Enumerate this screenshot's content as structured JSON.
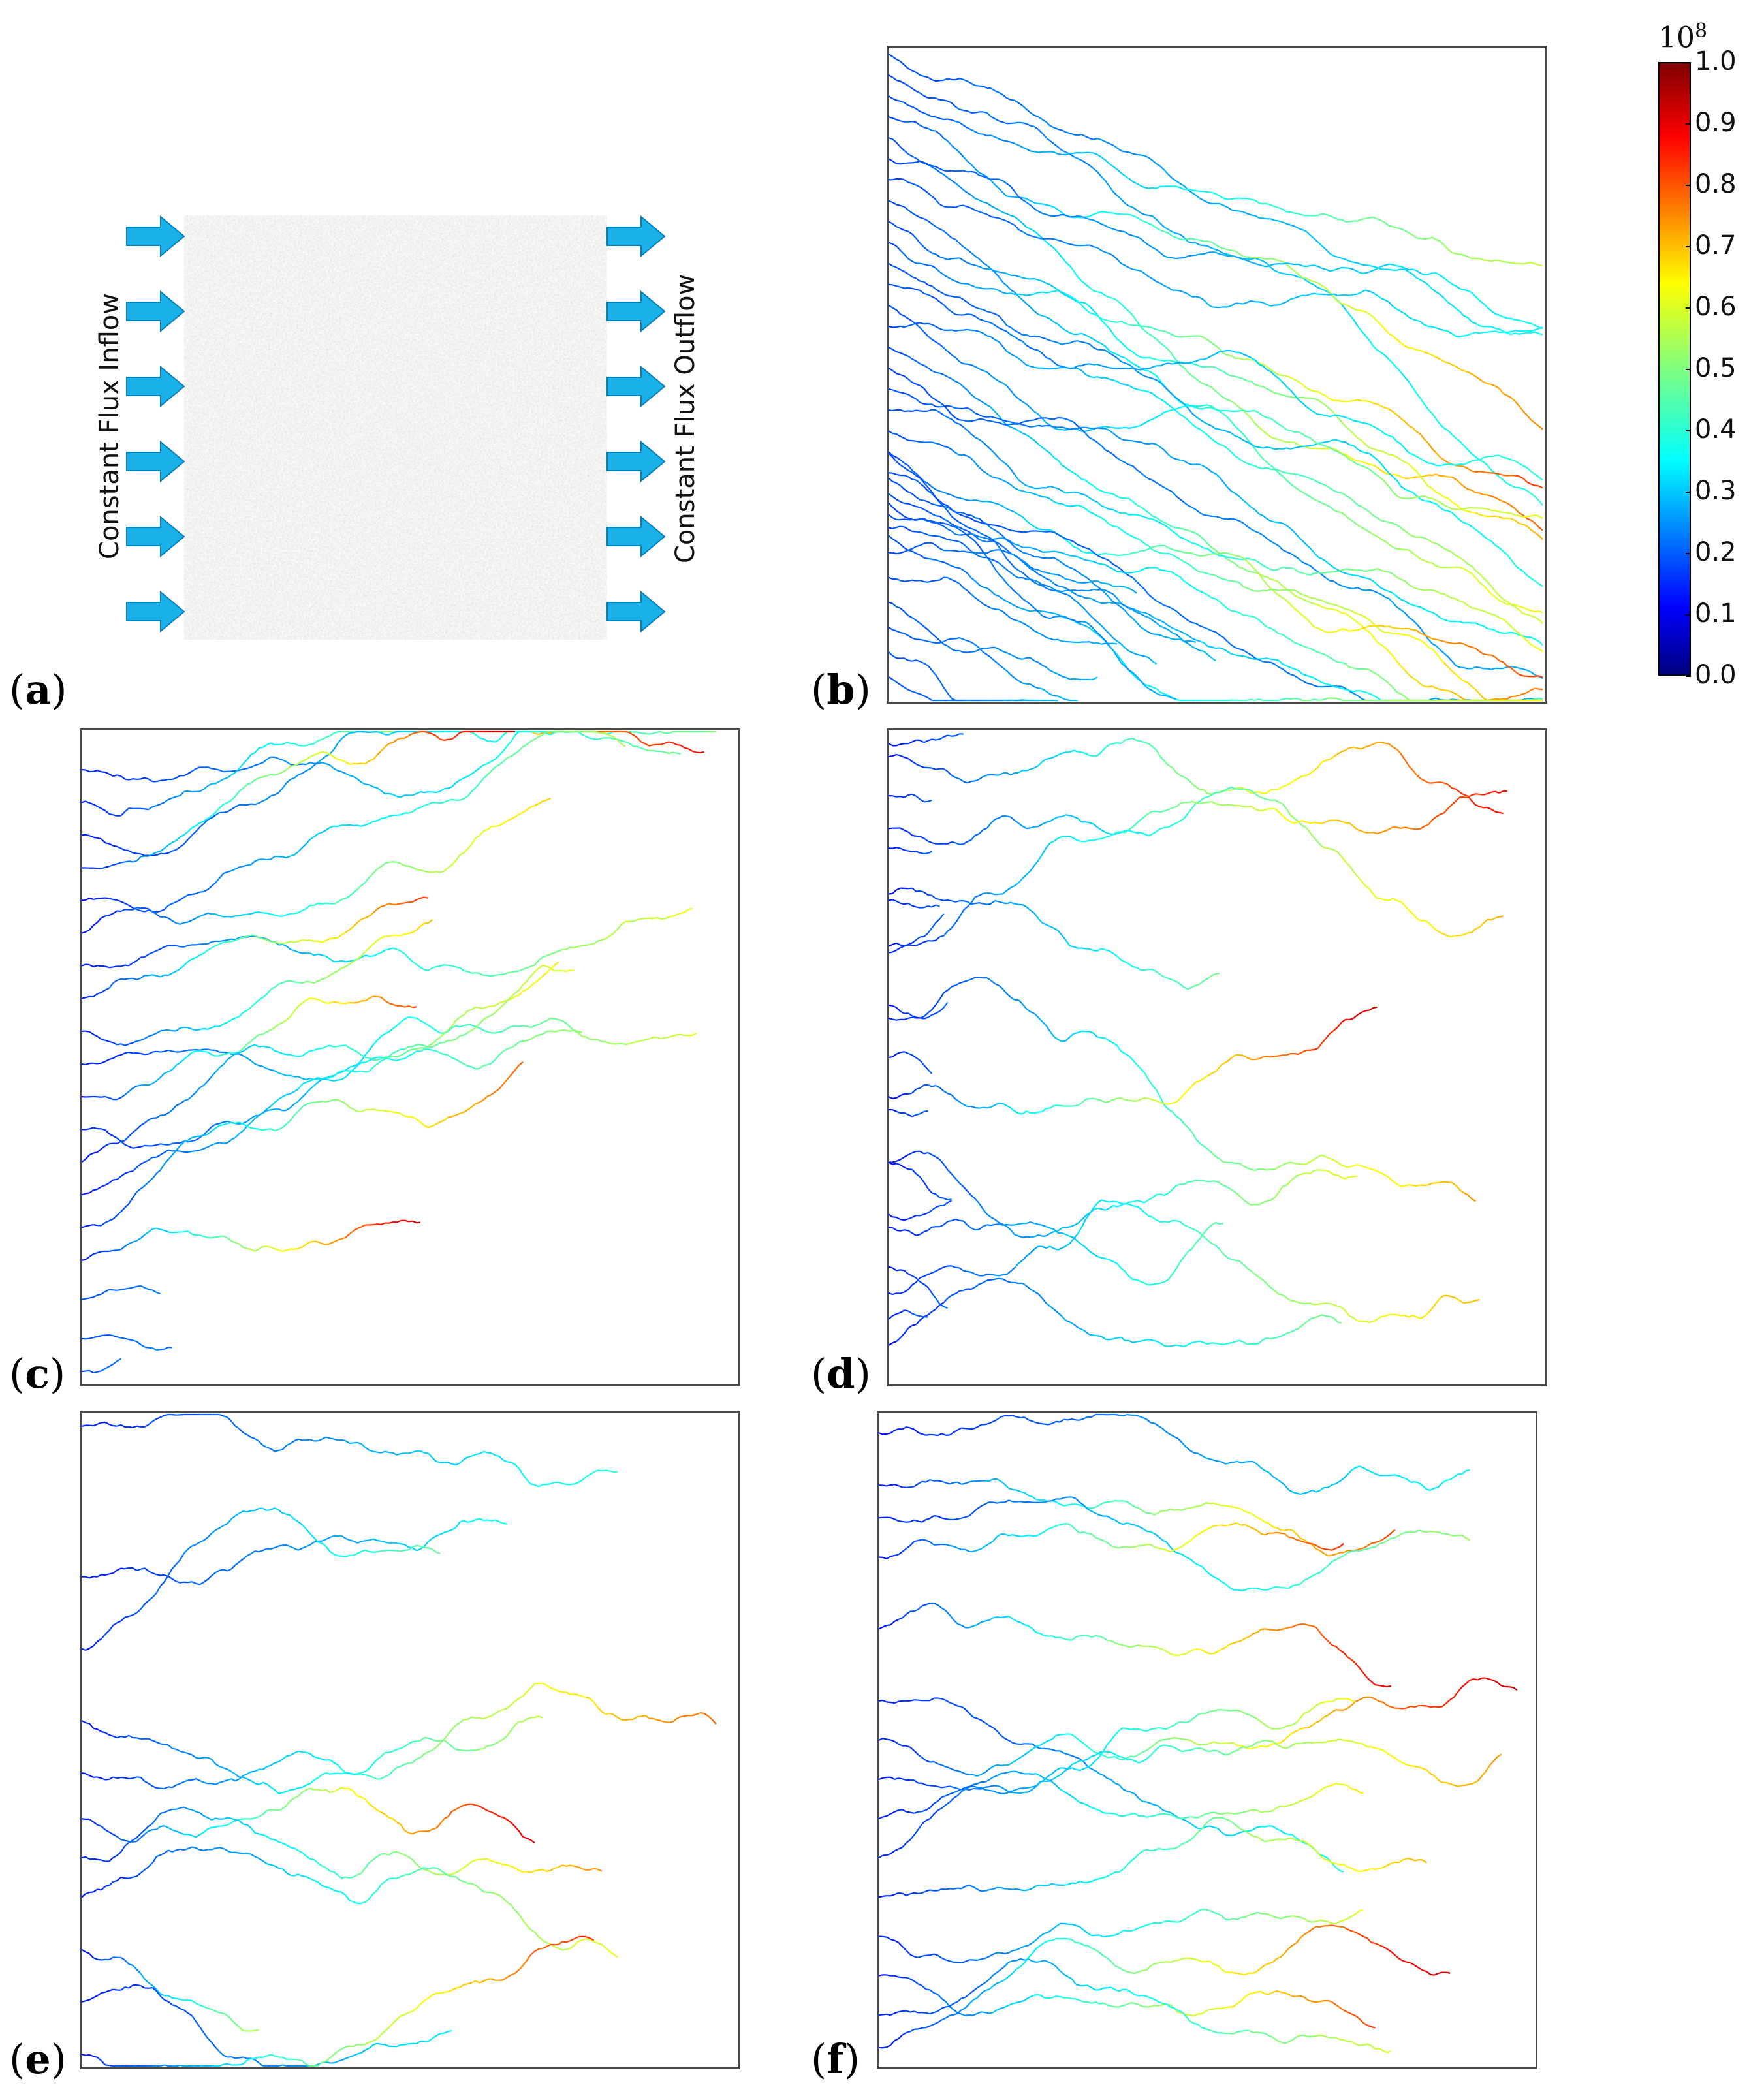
{
  "schematic": {
    "inflow_label": "Constant Flux Inflow",
    "outflow_label": "Constant Flux Outflow",
    "arrow_color": "#1ab0e8"
  },
  "colorbar": {
    "multiplier_base": "10",
    "multiplier_exp": "8",
    "ticks": [
      "0.0",
      "0.1",
      "0.2",
      "0.3",
      "0.4",
      "0.5",
      "0.6",
      "0.7",
      "0.8",
      "0.9",
      "1.0"
    ],
    "colormap": "jet"
  },
  "panels": [
    {
      "id": "a",
      "label": "a"
    },
    {
      "id": "b",
      "label": "b"
    },
    {
      "id": "c",
      "label": "c"
    },
    {
      "id": "d",
      "label": "d"
    },
    {
      "id": "e",
      "label": "e"
    },
    {
      "id": "f",
      "label": "f"
    }
  ]
}
